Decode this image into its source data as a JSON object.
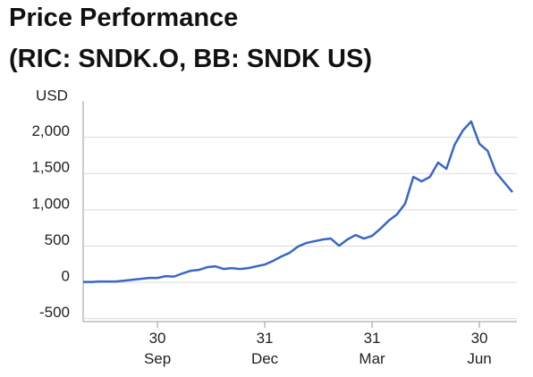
{
  "chart_data": {
    "type": "line",
    "title": "Price Performance",
    "subtitle": "(RIC: SNDK.O, BB: SNDK US)",
    "ylabel": "USD",
    "categories": [
      null,
      null,
      null,
      null,
      null,
      null,
      null,
      null,
      null,
      "30\nSep",
      null,
      null,
      null,
      null,
      null,
      null,
      null,
      null,
      null,
      null,
      null,
      null,
      "31\nDec",
      null,
      null,
      null,
      null,
      null,
      null,
      null,
      null,
      null,
      null,
      null,
      null,
      "31\nMar",
      null,
      null,
      null,
      null,
      null,
      null,
      null,
      null,
      null,
      null,
      null,
      null,
      "30\nJun",
      null,
      null,
      null,
      null
    ],
    "values": [
      6,
      6,
      12,
      12,
      12,
      25,
      37,
      49,
      62,
      62,
      86,
      80,
      123,
      160,
      172,
      209,
      222,
      185,
      197,
      185,
      197,
      222,
      246,
      296,
      357,
      407,
      493,
      542,
      567,
      591,
      604,
      505,
      591,
      653,
      604,
      641,
      739,
      850,
      936,
      1084,
      1454,
      1392,
      1454,
      1651,
      1565,
      1897,
      2094,
      2218,
      1910,
      1811,
      1515,
      1380,
      1244
    ],
    "color": "#3a66c8",
    "ylim": [
      -540,
      2500
    ],
    "yticks": [
      {
        "value": -500,
        "label": "-500"
      },
      0,
      500,
      {
        "value": 1000,
        "label": "1,000"
      },
      {
        "value": 1500,
        "label": "1,500"
      },
      {
        "value": 2000,
        "label": "2,000"
      }
    ],
    "grid": true
  }
}
